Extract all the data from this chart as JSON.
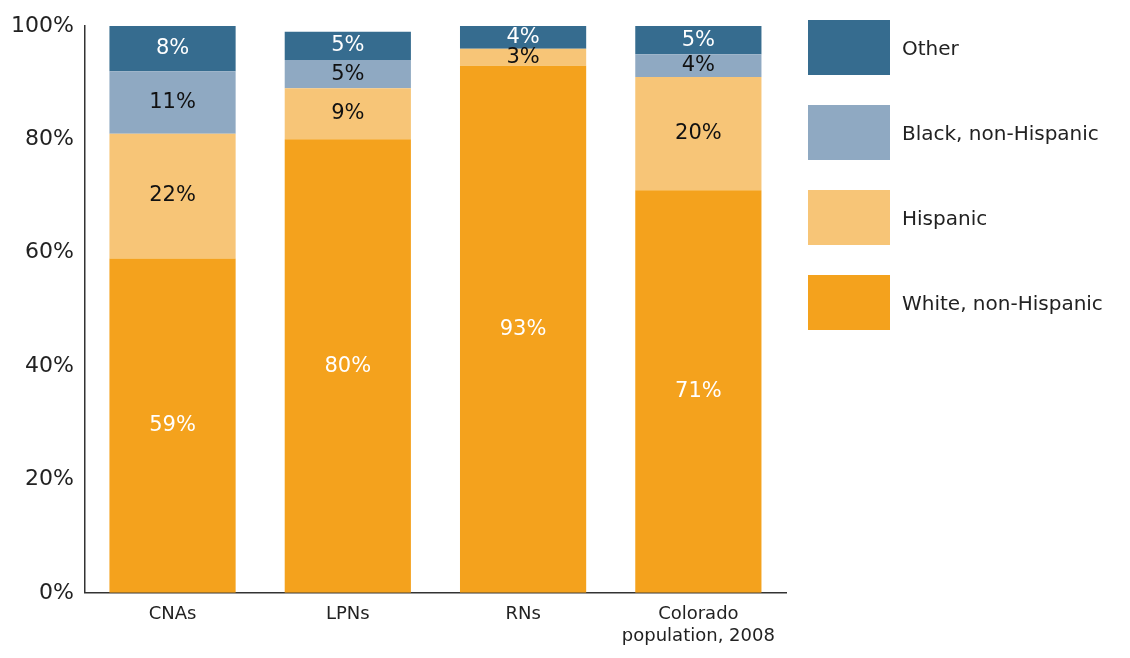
{
  "chart_data": {
    "type": "bar",
    "stacked": true,
    "categories": [
      "CNAs",
      "LPNs",
      "RNs",
      "Colorado population, 2008"
    ],
    "series": [
      {
        "name": "White, non-Hispanic",
        "color": "#f4a21d",
        "values": [
          59,
          80,
          93,
          71
        ],
        "value_labels": [
          "59%",
          "80%",
          "93%",
          "71%"
        ]
      },
      {
        "name": "Hispanic",
        "color": "#f7c577",
        "values": [
          22,
          9,
          3,
          20
        ],
        "value_labels": [
          "22%",
          "9%",
          "3%",
          "20%"
        ]
      },
      {
        "name": "Black, non-Hispanic",
        "color": "#8fa9c2",
        "values": [
          11,
          5,
          0,
          4
        ],
        "value_labels": [
          "11%",
          "5%",
          null,
          "4%"
        ]
      },
      {
        "name": "Other",
        "color": "#366c8f",
        "values": [
          8,
          5,
          4,
          5
        ],
        "value_labels": [
          "8%",
          "5%",
          "4%",
          "5%"
        ]
      }
    ],
    "ylim": [
      0,
      100
    ],
    "yticks": [
      {
        "value": 0,
        "label": "0%"
      },
      {
        "value": 20,
        "label": "20%"
      },
      {
        "value": 40,
        "label": "40%"
      },
      {
        "value": 60,
        "label": "60%"
      },
      {
        "value": 80,
        "label": "80%"
      },
      {
        "value": 100,
        "label": "100%"
      }
    ],
    "grid": false,
    "legend": "right"
  }
}
